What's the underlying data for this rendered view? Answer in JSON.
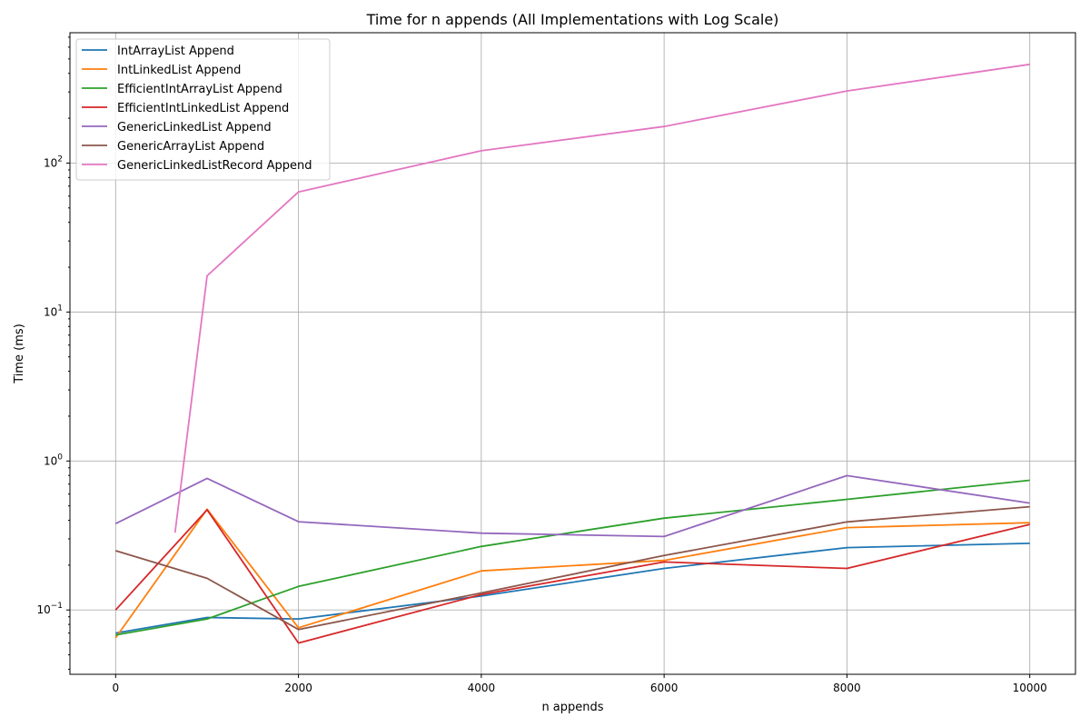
{
  "chart_data": {
    "type": "line",
    "title": "Time for n appends (All Implementations with Log Scale)",
    "xlabel": "n appends",
    "ylabel": "Time (ms)",
    "xlim": [
      -500,
      10500
    ],
    "ylim": [
      0.037,
      750
    ],
    "yscale": "log",
    "grid": true,
    "legend_position": "top-left",
    "x_ticks": [
      0,
      2000,
      4000,
      6000,
      8000,
      10000
    ],
    "x_tick_labels": [
      "0",
      "2000",
      "4000",
      "6000",
      "8000",
      "10000"
    ],
    "y_ticks": [
      0.1,
      1,
      10,
      100
    ],
    "y_tick_labels": [
      {
        "base": "10",
        "exp": "−1"
      },
      {
        "base": "10",
        "exp": "0"
      },
      {
        "base": "10",
        "exp": "1"
      },
      {
        "base": "10",
        "exp": "2"
      }
    ],
    "series": [
      {
        "name": "IntArrayList Append",
        "color": "#1f77b4",
        "x": [
          0,
          1000,
          2000,
          4000,
          6000,
          8000,
          10000
        ],
        "values": [
          0.07,
          0.089,
          0.087,
          0.124,
          0.19,
          0.262,
          0.28
        ]
      },
      {
        "name": "IntLinkedList Append",
        "color": "#ff7f0e",
        "x": [
          0,
          1000,
          2000,
          4000,
          6000,
          8000,
          10000
        ],
        "values": [
          0.065,
          0.475,
          0.076,
          0.183,
          0.215,
          0.357,
          0.385
        ]
      },
      {
        "name": "EfficientIntArrayList Append",
        "color": "#2ca02c",
        "x": [
          0,
          1000,
          2000,
          4000,
          6000,
          8000,
          10000
        ],
        "values": [
          0.068,
          0.087,
          0.144,
          0.267,
          0.413,
          0.553,
          0.742
        ]
      },
      {
        "name": "EfficientIntLinkedList Append",
        "color": "#d62728",
        "x": [
          0,
          1000,
          2000,
          4000,
          6000,
          8000,
          10000
        ],
        "values": [
          0.1,
          0.47,
          0.06,
          0.127,
          0.21,
          0.19,
          0.375
        ]
      },
      {
        "name": "GenericLinkedList Append",
        "color": "#9467bd",
        "x": [
          0,
          1000,
          2000,
          4000,
          6000,
          8000,
          10000
        ],
        "values": [
          0.38,
          0.765,
          0.391,
          0.328,
          0.311,
          0.797,
          0.522
        ]
      },
      {
        "name": "GenericArrayList Append",
        "color": "#8c564b",
        "x": [
          0,
          1000,
          2000,
          4000,
          6000,
          8000,
          10000
        ],
        "values": [
          0.25,
          0.163,
          0.074,
          0.13,
          0.232,
          0.39,
          0.493
        ]
      },
      {
        "name": "GenericLinkedListRecord Append",
        "color": "#e377c2",
        "x": [
          650,
          1000,
          2000,
          4000,
          6000,
          8000,
          10000
        ],
        "values": [
          0.33,
          17.5,
          64,
          121,
          176,
          305,
          460
        ]
      }
    ]
  }
}
